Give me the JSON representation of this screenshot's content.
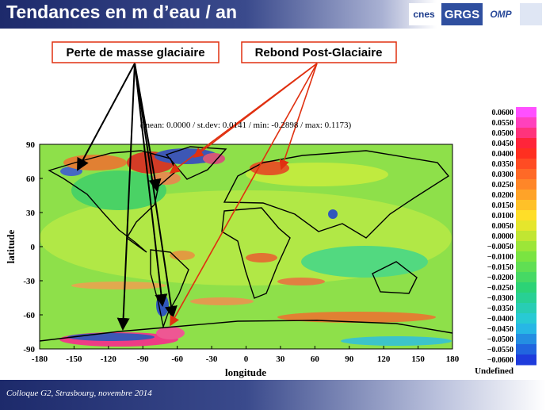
{
  "header": {
    "title": "Tendances en m d’eau / an",
    "logos": [
      "cnes",
      "GRGS",
      "OMP"
    ]
  },
  "annotations": {
    "glacier_loss": "Perte de masse glaciaire",
    "rebound": "Rebond Post-Glaciaire"
  },
  "map": {
    "stats": "(mean:  0.0000 / st.dev:   0.0141 / min:  -0.2898 / max:   0.1173)",
    "xlabel": "longitude",
    "ylabel": "latitude",
    "xticks": [
      -180,
      -150,
      -120,
      -90,
      -60,
      -30,
      0,
      30,
      60,
      90,
      120,
      150,
      180
    ],
    "yticks": [
      -90,
      -60,
      -30,
      0,
      30,
      60,
      90
    ]
  },
  "colorbar": {
    "labels": [
      "0.0600",
      "0.0550",
      "0.0500",
      "0.0450",
      "0.0400",
      "0.0350",
      "0.0300",
      "0.0250",
      "0.0200",
      "0.0150",
      "0.0100",
      "0.0050",
      "0.0000",
      "−0.0050",
      "−0.0100",
      "−0.0150",
      "−0.0200",
      "−0.0250",
      "−0.0300",
      "−0.0350",
      "−0.0400",
      "−0.0450",
      "−0.0500",
      "−0.0550",
      "−0.0600"
    ],
    "undefined": "Undefined"
  },
  "footer": "Colloque G2, Strasbourg, novembre 2014"
}
